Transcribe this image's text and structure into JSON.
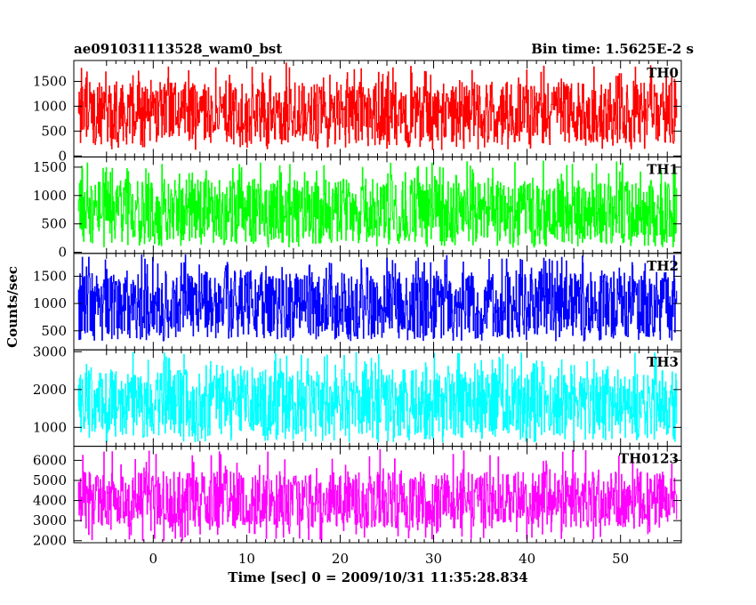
{
  "header": {
    "title": "ae091031113528_wam0_bst",
    "bin_time": "Bin time: 1.5625E-2 s"
  },
  "axes": {
    "xlabel": "Time [sec] 0 = 2009/10/31 11:35:28.834",
    "ylabel": "Counts/sec"
  },
  "chart_data": {
    "type": "line",
    "x_range": [
      -8.5,
      56.5
    ],
    "x_ticks": [
      0,
      10,
      20,
      30,
      40,
      50
    ],
    "x_data_extent": [
      -8.0,
      56.0
    ],
    "bin_time_s": 0.015625,
    "dip_time": 27.3,
    "grid": false,
    "panels": [
      {
        "name": "TH0",
        "color": "#ff0000",
        "ylim": [
          -20,
          1920
        ],
        "yticks": [
          0,
          500,
          1000,
          1500
        ],
        "mean": 860,
        "low": 250,
        "high": 1500,
        "peak": 1880,
        "dip_low": 120
      },
      {
        "name": "TH1",
        "color": "#00ff00",
        "ylim": [
          -20,
          1680
        ],
        "yticks": [
          0,
          500,
          1000,
          1500
        ],
        "mean": 720,
        "low": 150,
        "high": 1300,
        "peak": 1620,
        "dip_low": 80
      },
      {
        "name": "TH2",
        "color": "#0000ff",
        "ylim": [
          150,
          1920
        ],
        "yticks": [
          500,
          1000,
          1500
        ],
        "mean": 1000,
        "low": 380,
        "high": 1600,
        "peak": 1900,
        "dip_low": 300
      },
      {
        "name": "TH3",
        "color": "#00ffff",
        "ylim": [
          500,
          3050
        ],
        "yticks": [
          1000,
          2000,
          3000
        ],
        "mean": 1550,
        "low": 750,
        "high": 2550,
        "peak": 3000,
        "dip_low": 600
      },
      {
        "name": "TH0123",
        "color": "#ff00ff",
        "ylim": [
          1900,
          6700
        ],
        "yticks": [
          2000,
          3000,
          4000,
          5000,
          6000
        ],
        "mean": 3950,
        "low": 2600,
        "high": 5450,
        "peak": 6600,
        "dip_low": 1950
      }
    ]
  }
}
